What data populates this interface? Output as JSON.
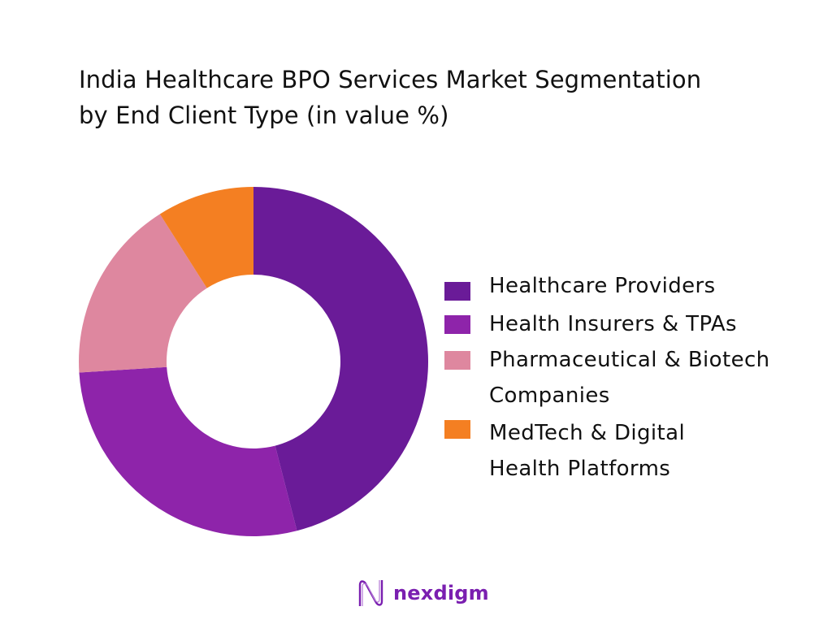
{
  "title": {
    "line1": "India Healthcare BPO Services Market Segmentation",
    "line2": "by End Client Type (in value %)"
  },
  "legend": {
    "items": [
      {
        "lines": [
          "Healthcare Providers"
        ],
        "color": "#6a1b98"
      },
      {
        "lines": [
          "Health Insurers & TPAs"
        ],
        "color": "#8e24aa"
      },
      {
        "lines": [
          "Pharmaceutical & Biotech",
          "Companies"
        ],
        "color": "#de879f"
      },
      {
        "lines": [
          "MedTech & Digital",
          "Health Platforms"
        ],
        "color": "#f47f22"
      }
    ]
  },
  "logo": {
    "icon": "nexdigm-wave-icon",
    "text": "nexdigm"
  },
  "chart_data": {
    "type": "pie",
    "variant": "donut",
    "title": "India Healthcare BPO Services Market Segmentation by End Client Type (in value %)",
    "categories": [
      "Healthcare Providers",
      "Health Insurers & TPAs",
      "Pharmaceutical & Biotech Companies",
      "MedTech & Digital Health Platforms"
    ],
    "values": [
      46,
      28,
      17,
      9
    ],
    "colors": [
      "#6a1b98",
      "#8e24aa",
      "#de879f",
      "#f47f22"
    ],
    "unit": "%",
    "start_angle": "12 o'clock",
    "direction": "clockwise",
    "data_labels": false,
    "legend_position": "right"
  }
}
